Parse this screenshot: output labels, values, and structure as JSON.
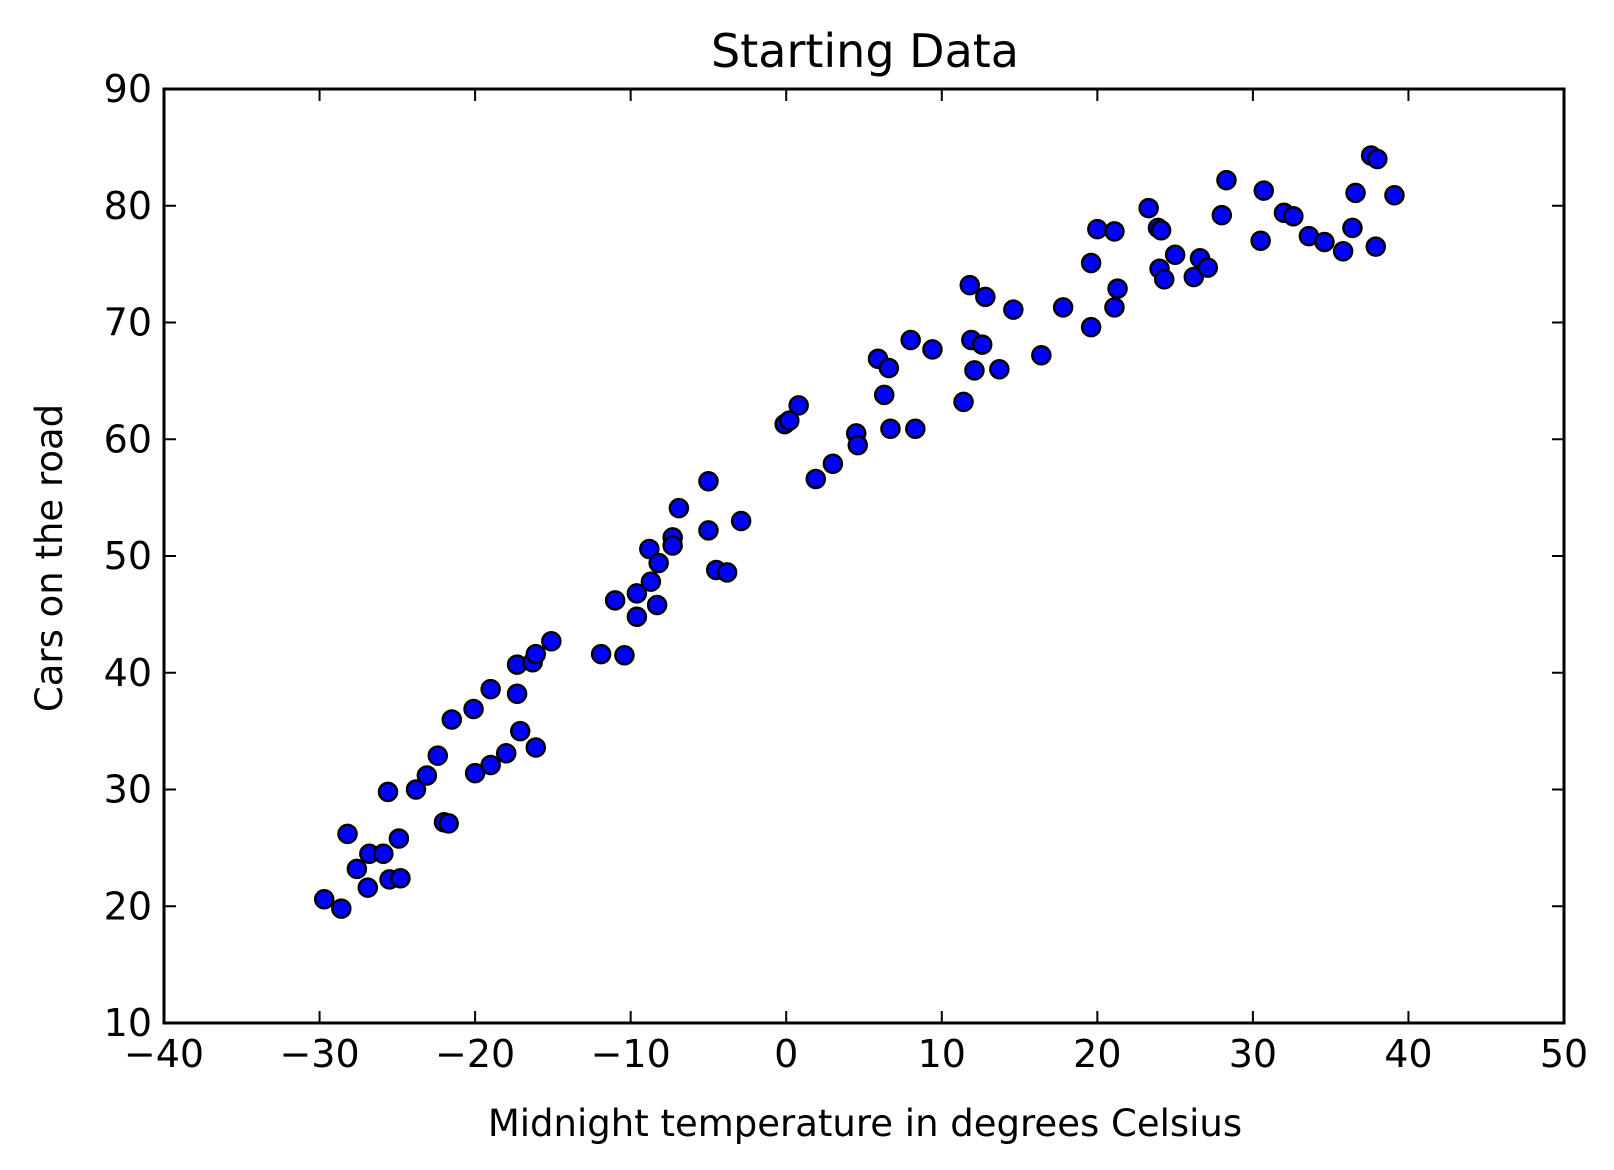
{
  "chart_data": {
    "type": "scatter",
    "title": "Starting Data",
    "xlabel": "Midnight temperature in degrees Celsius",
    "ylabel": "Cars on the road",
    "xlim": [
      -40,
      50
    ],
    "ylim": [
      10,
      90
    ],
    "xticks": [
      -40,
      -30,
      -20,
      -10,
      0,
      10,
      20,
      30,
      40,
      50
    ],
    "yticks": [
      10,
      20,
      30,
      40,
      50,
      60,
      70,
      80,
      90
    ],
    "xtick_labels": [
      "−40",
      "−30",
      "−20",
      "−10",
      "0",
      "10",
      "20",
      "30",
      "40",
      "50"
    ],
    "ytick_labels": [
      "10",
      "20",
      "30",
      "40",
      "50",
      "60",
      "70",
      "80",
      "90"
    ],
    "grid": false,
    "marker_color": "#0000ff",
    "marker_edge_color": "#000000",
    "series": [
      {
        "points": [
          [
            -29.7,
            20.6
          ],
          [
            -28.6,
            19.8
          ],
          [
            -28.2,
            26.2
          ],
          [
            -27.6,
            23.2
          ],
          [
            -26.8,
            24.5
          ],
          [
            -26.9,
            21.6
          ],
          [
            -25.9,
            24.5
          ],
          [
            -25.6,
            29.8
          ],
          [
            -25.5,
            22.3
          ],
          [
            -24.9,
            25.8
          ],
          [
            -24.8,
            22.4
          ],
          [
            -23.8,
            30.0
          ],
          [
            -23.1,
            31.2
          ],
          [
            -22.4,
            32.9
          ],
          [
            -22.0,
            27.2
          ],
          [
            -21.7,
            27.1
          ],
          [
            -21.5,
            36.0
          ],
          [
            -20.1,
            36.9
          ],
          [
            -20.0,
            31.4
          ],
          [
            -19.0,
            38.6
          ],
          [
            -19.0,
            32.1
          ],
          [
            -18.0,
            33.1
          ],
          [
            -17.3,
            40.7
          ],
          [
            -17.3,
            38.2
          ],
          [
            -17.1,
            35.0
          ],
          [
            -16.3,
            40.9
          ],
          [
            -16.1,
            41.6
          ],
          [
            -16.1,
            33.6
          ],
          [
            -15.1,
            42.7
          ],
          [
            -11.9,
            41.6
          ],
          [
            -10.4,
            41.5
          ],
          [
            -11.0,
            46.2
          ],
          [
            -9.6,
            46.8
          ],
          [
            -9.6,
            44.8
          ],
          [
            -8.8,
            50.6
          ],
          [
            -8.7,
            47.8
          ],
          [
            -8.2,
            49.4
          ],
          [
            -8.3,
            45.8
          ],
          [
            -7.3,
            51.6
          ],
          [
            -7.3,
            50.9
          ],
          [
            -6.9,
            54.1
          ],
          [
            -5.0,
            56.4
          ],
          [
            -5.0,
            52.2
          ],
          [
            -4.5,
            48.8
          ],
          [
            -3.8,
            48.6
          ],
          [
            -2.9,
            53.0
          ],
          [
            -0.1,
            61.3
          ],
          [
            0.2,
            61.6
          ],
          [
            0.8,
            62.9
          ],
          [
            1.9,
            56.6
          ],
          [
            3.0,
            57.9
          ],
          [
            4.5,
            60.5
          ],
          [
            4.6,
            59.5
          ],
          [
            5.9,
            66.9
          ],
          [
            6.3,
            63.8
          ],
          [
            6.6,
            66.1
          ],
          [
            6.7,
            60.9
          ],
          [
            8.0,
            68.5
          ],
          [
            8.3,
            60.9
          ],
          [
            9.4,
            67.7
          ],
          [
            11.4,
            63.2
          ],
          [
            11.8,
            73.2
          ],
          [
            11.9,
            68.5
          ],
          [
            12.1,
            65.9
          ],
          [
            12.6,
            68.1
          ],
          [
            12.8,
            72.2
          ],
          [
            13.7,
            66.0
          ],
          [
            14.6,
            71.1
          ],
          [
            16.4,
            67.2
          ],
          [
            17.8,
            71.3
          ],
          [
            19.6,
            69.6
          ],
          [
            19.6,
            75.1
          ],
          [
            20.0,
            78.0
          ],
          [
            21.1,
            77.8
          ],
          [
            21.1,
            71.3
          ],
          [
            21.3,
            72.9
          ],
          [
            23.3,
            79.8
          ],
          [
            23.9,
            78.1
          ],
          [
            24.0,
            74.6
          ],
          [
            24.1,
            77.9
          ],
          [
            24.3,
            73.7
          ],
          [
            25.0,
            75.8
          ],
          [
            26.2,
            73.9
          ],
          [
            26.6,
            75.5
          ],
          [
            27.1,
            74.7
          ],
          [
            28.0,
            79.2
          ],
          [
            28.3,
            82.2
          ],
          [
            30.5,
            77.0
          ],
          [
            30.7,
            81.3
          ],
          [
            32.0,
            79.4
          ],
          [
            32.6,
            79.1
          ],
          [
            33.6,
            77.4
          ],
          [
            34.6,
            76.9
          ],
          [
            35.8,
            76.1
          ],
          [
            36.4,
            78.1
          ],
          [
            36.6,
            81.1
          ],
          [
            37.6,
            84.3
          ],
          [
            37.9,
            76.5
          ],
          [
            38.0,
            84.0
          ],
          [
            39.1,
            80.9
          ]
        ]
      }
    ]
  }
}
